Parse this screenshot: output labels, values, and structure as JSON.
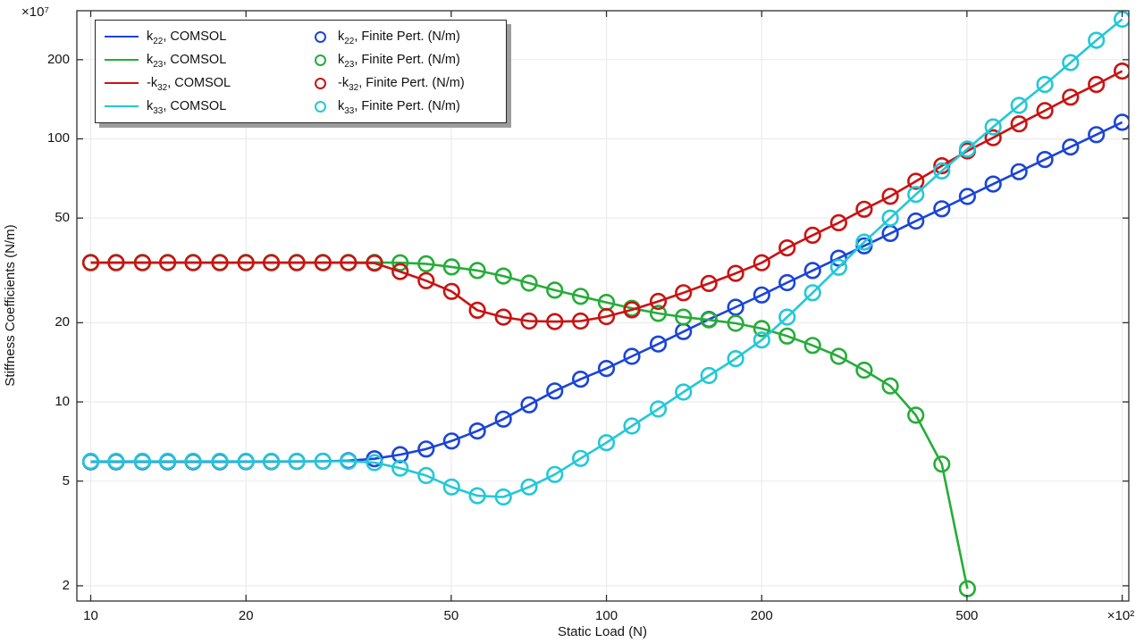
{
  "figure": {
    "background": "#ffffff",
    "grid_color": "#ebebeb",
    "axis_color": "#2e2e2e",
    "text_color": "#141414",
    "legend_shadow": "#9c9c9c"
  },
  "chart_data": {
    "type": "line",
    "title": "",
    "xlabel": "Static Load (N)",
    "ylabel": "Stiffness Coefficients (N/m)",
    "x_scale": "log",
    "y_scale": "log",
    "x_axis_multiplier": "×10²",
    "y_axis_multiplier": "×10⁷",
    "grid": true,
    "legend_position": "top-left",
    "xlim": [
      9.4,
      1030
    ],
    "ylim": [
      1.75,
      307
    ],
    "x_ticks": [
      {
        "value": 10,
        "label": "10"
      },
      {
        "value": 20,
        "label": "20"
      },
      {
        "value": 50,
        "label": "50"
      },
      {
        "value": 100,
        "label": "100"
      },
      {
        "value": 200,
        "label": "200"
      },
      {
        "value": 500,
        "label": "500"
      },
      {
        "value": 1000,
        "label": "×10²"
      }
    ],
    "y_ticks": [
      {
        "value": 2,
        "label": "2"
      },
      {
        "value": 5,
        "label": "5"
      },
      {
        "value": 10,
        "label": "10"
      },
      {
        "value": 20,
        "label": "20"
      },
      {
        "value": 50,
        "label": "50"
      },
      {
        "value": 100,
        "label": "100"
      },
      {
        "value": 200,
        "label": "200"
      }
    ],
    "x": [
      10,
      11.2,
      12.6,
      14.1,
      15.8,
      17.8,
      20,
      22.4,
      25.1,
      28.2,
      31.6,
      35.5,
      39.8,
      44.7,
      50.1,
      56.2,
      63.1,
      70.8,
      79.4,
      89.1,
      100,
      112,
      126,
      141,
      158,
      178,
      200,
      224,
      251,
      282,
      316,
      355,
      398,
      447,
      501,
      562,
      631,
      708,
      794,
      891,
      1000
    ],
    "series": [
      {
        "id": "k22",
        "base": "k",
        "sub": "22",
        "line_suffix": ", COMSOL",
        "marker_suffix": ", Finite Pert. (N/m)",
        "color": "#1b44d8",
        "values": [
          5.92,
          5.92,
          5.92,
          5.92,
          5.92,
          5.92,
          5.93,
          5.93,
          5.94,
          5.95,
          5.98,
          6.08,
          6.3,
          6.62,
          7.1,
          7.75,
          8.6,
          9.75,
          11.0,
          12.2,
          13.4,
          14.9,
          16.6,
          18.5,
          20.6,
          22.9,
          25.5,
          28.4,
          31.6,
          35.2,
          39.2,
          43.7,
          48.7,
          54.2,
          60.4,
          67.3,
          75.0,
          83.5,
          93.1,
          103.7,
          115.6
        ]
      },
      {
        "id": "k23",
        "base": "k",
        "sub": "23",
        "line_suffix": ", COMSOL",
        "marker_suffix": ", Finite Pert. (N/m)",
        "color": "#25ad38",
        "values": [
          33.9,
          33.9,
          33.9,
          33.9,
          33.9,
          33.9,
          33.9,
          33.9,
          33.9,
          33.9,
          33.9,
          33.9,
          33.8,
          33.5,
          32.6,
          31.6,
          30.1,
          28.3,
          26.6,
          25.2,
          23.9,
          22.7,
          21.7,
          21.0,
          20.5,
          19.9,
          19.0,
          17.8,
          16.4,
          14.9,
          13.2,
          11.5,
          8.9,
          5.8,
          1.95
        ]
      },
      {
        "id": "neg-k32",
        "base": "-k",
        "sub": "32",
        "line_suffix": ", COMSOL",
        "marker_suffix": ", Finite Pert. (N/m)",
        "color": "#cb1212",
        "values": [
          33.8,
          33.8,
          33.8,
          33.8,
          33.8,
          33.8,
          33.8,
          33.8,
          33.8,
          33.8,
          33.8,
          33.7,
          31.3,
          28.9,
          26.3,
          22.3,
          21.0,
          20.3,
          20.2,
          20.3,
          21.1,
          22.4,
          24.1,
          26.0,
          28.2,
          30.8,
          33.8,
          38.5,
          43.0,
          48.0,
          54.0,
          60.5,
          69.0,
          79.0,
          90.0,
          101.0,
          114.0,
          128.0,
          144.0,
          161.0,
          181.0
        ]
      },
      {
        "id": "k33",
        "base": "k",
        "sub": "33",
        "line_suffix": ", COMSOL",
        "marker_suffix": ", Finite Pert. (N/m)",
        "color": "#23c8d7",
        "values": [
          5.95,
          5.95,
          5.95,
          5.95,
          5.95,
          5.95,
          5.95,
          5.95,
          5.95,
          5.95,
          5.95,
          5.88,
          5.6,
          5.25,
          4.75,
          4.4,
          4.35,
          4.75,
          5.3,
          6.1,
          7.0,
          8.1,
          9.4,
          10.9,
          12.6,
          14.6,
          17.2,
          21.0,
          26.0,
          32.5,
          40.5,
          50.0,
          61.5,
          75.5,
          91.5,
          111.0,
          134.0,
          161.0,
          195.0,
          237.0,
          285.0
        ]
      }
    ]
  }
}
